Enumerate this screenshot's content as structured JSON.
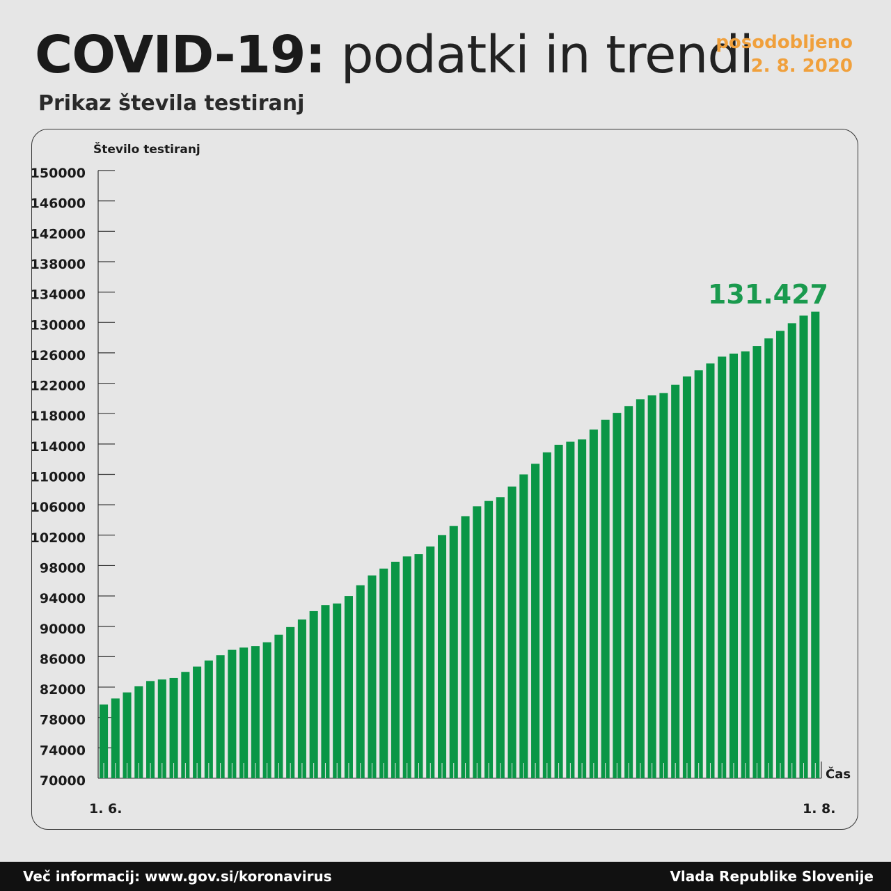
{
  "header": {
    "title_bold": "COVID-19:",
    "title_light": "podatki in trendi",
    "updated_label": "posodobljeno",
    "updated_date": "2. 8. 2020",
    "subtitle": "Prikaz števila testiranj"
  },
  "footer": {
    "info": "Več informacij: www.gov.si/koronavirus",
    "org": "Vlada Republike Slovenije"
  },
  "colors": {
    "bar": "#0a9646",
    "highlight": "#1a9a4e",
    "updated": "#f0a03c",
    "background": "#e6e6e6"
  },
  "chart_data": {
    "type": "bar",
    "ylabel": "Število testiranj",
    "xlabel": "Čas",
    "ylim": [
      70000,
      150000
    ],
    "yticks": [
      "70000",
      "74000",
      "78000",
      "82000",
      "86000",
      "90000",
      "94000",
      "98000",
      "102000",
      "106000",
      "110000",
      "114000",
      "118000",
      "122000",
      "126000",
      "130000",
      "134000",
      "138000",
      "142000",
      "146000",
      "150000"
    ],
    "x_start_label": "1. 6.",
    "x_end_label": "1. 8.",
    "highlight_label": "131.427",
    "grid": false,
    "values": [
      79700,
      80500,
      81300,
      82100,
      82800,
      83000,
      83200,
      84000,
      84700,
      85500,
      86200,
      86900,
      87200,
      87400,
      87900,
      88900,
      89900,
      90900,
      92000,
      92800,
      93000,
      94000,
      95400,
      96700,
      97600,
      98500,
      99200,
      99500,
      100500,
      102000,
      103200,
      104500,
      105800,
      106500,
      107000,
      108400,
      110000,
      111400,
      112900,
      113900,
      114300,
      114600,
      115900,
      117200,
      118100,
      119000,
      119900,
      120400,
      120700,
      121800,
      122900,
      123700,
      124600,
      125500,
      125900,
      126200,
      126900,
      127900,
      128900,
      129900,
      130900,
      131427
    ]
  }
}
